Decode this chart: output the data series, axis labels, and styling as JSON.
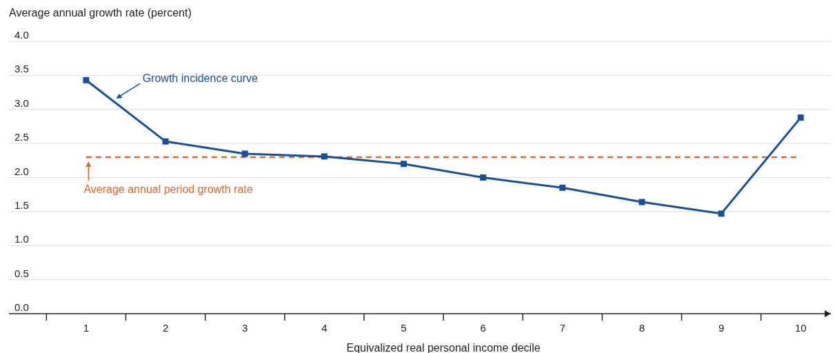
{
  "chart_data": {
    "type": "line",
    "ylabel": "Average annual growth rate (percent)",
    "xlabel": "Equivalized real personal income decile",
    "categories": [
      "1",
      "2",
      "3",
      "4",
      "5",
      "6",
      "7",
      "8",
      "9",
      "10"
    ],
    "series": [
      {
        "name": "Growth incidence curve",
        "color": "#174f98",
        "values": [
          3.43,
          2.53,
          2.35,
          2.31,
          2.2,
          2.0,
          1.85,
          1.64,
          1.47,
          2.88
        ]
      }
    ],
    "ylim": [
      0,
      4
    ],
    "yticks": [
      {
        "value": 0,
        "label": "0.0"
      },
      {
        "value": 0.5,
        "label": "0.5"
      },
      {
        "value": 1,
        "label": "1.0"
      },
      {
        "value": 1.5,
        "label": "1.5"
      },
      {
        "value": 2,
        "label": "2.0"
      },
      {
        "value": 2.5,
        "label": "2.5"
      },
      {
        "value": 3,
        "label": "3.0"
      },
      {
        "value": 3.5,
        "label": "3.5"
      },
      {
        "value": 4,
        "label": "4.0"
      }
    ],
    "grid": "y",
    "marker": "square",
    "line_style": "solid",
    "ref_lines": [
      {
        "axis": "y",
        "value": 2.3,
        "label": "Average annual period growth rate",
        "color": "#e0662a",
        "line_style": "dashed"
      }
    ]
  }
}
